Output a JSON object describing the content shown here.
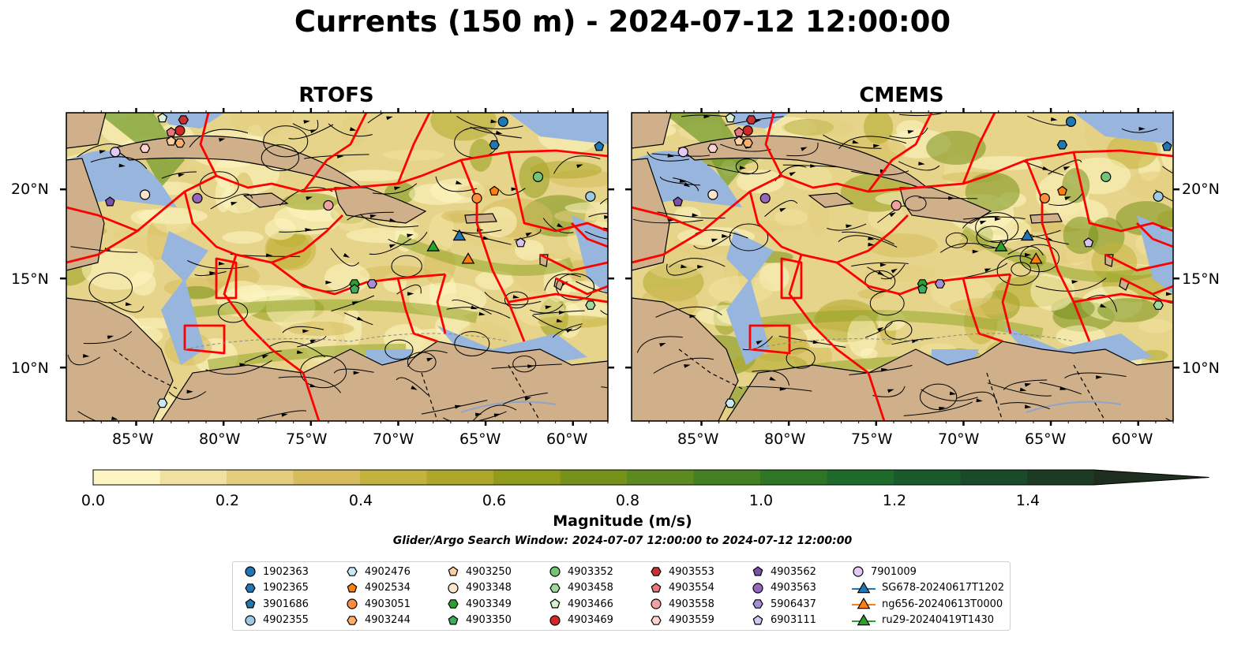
{
  "title": "Currents (150 m) - 2024-07-12 12:00:00",
  "panels": [
    {
      "title": "RTOFS"
    },
    {
      "title": "CMEMS"
    }
  ],
  "lon_ticks": [
    "85°W",
    "80°W",
    "75°W",
    "70°W",
    "65°W",
    "60°W"
  ],
  "lat_ticks": [
    "20°N",
    "15°N",
    "10°N"
  ],
  "colorbar": {
    "label": "Magnitude (m/s)",
    "ticks": [
      "0.0",
      "0.2",
      "0.4",
      "0.6",
      "0.8",
      "1.0",
      "1.2",
      "1.4"
    ],
    "colors": [
      "#fdf6c3",
      "#f1e1a0",
      "#e4cd7e",
      "#d6bc5c",
      "#c4b23e",
      "#aea72a",
      "#919c1a",
      "#76921a",
      "#5c8a1e",
      "#438022",
      "#2e7526",
      "#1e6a2b",
      "#19592b",
      "#1a4a29",
      "#1d3b24",
      "#1f2e1e"
    ]
  },
  "search_window": "Glider/Argo Search Window: 2024-07-07 12:00:00 to 2024-07-12 12:00:00",
  "legend": [
    {
      "label": "1902363",
      "shape": "circle",
      "color": "#1f77b4"
    },
    {
      "label": "1902365",
      "shape": "hexagon",
      "color": "#1f77b4"
    },
    {
      "label": "3901686",
      "shape": "pentagon",
      "color": "#1f77b4"
    },
    {
      "label": "4902355",
      "shape": "circle",
      "color": "#9ecae1"
    },
    {
      "label": "4902476",
      "shape": "hexagon",
      "color": "#c6e9f5"
    },
    {
      "label": "4902534",
      "shape": "pentagon",
      "color": "#ff7f0e"
    },
    {
      "label": "4903051",
      "shape": "circle",
      "color": "#fd8d3c"
    },
    {
      "label": "4903244",
      "shape": "hexagon",
      "color": "#fdae6b"
    },
    {
      "label": "4903250",
      "shape": "pentagon",
      "color": "#fdd0a2"
    },
    {
      "label": "4903348",
      "shape": "circle",
      "color": "#fee6ce"
    },
    {
      "label": "4903349",
      "shape": "hexagon",
      "color": "#2ca02c"
    },
    {
      "label": "4903350",
      "shape": "pentagon",
      "color": "#41ab5d"
    },
    {
      "label": "4903352",
      "shape": "circle",
      "color": "#74c476"
    },
    {
      "label": "4903458",
      "shape": "hexagon",
      "color": "#a1d99b"
    },
    {
      "label": "4903466",
      "shape": "pentagon",
      "color": "#d9f0d3"
    },
    {
      "label": "4903469",
      "shape": "circle",
      "color": "#d62728"
    },
    {
      "label": "4903553",
      "shape": "hexagon",
      "color": "#c83232"
    },
    {
      "label": "4903554",
      "shape": "pentagon",
      "color": "#e7777a"
    },
    {
      "label": "4903558",
      "shape": "circle",
      "color": "#f0a1a1"
    },
    {
      "label": "4903559",
      "shape": "hexagon",
      "color": "#fcd2d2"
    },
    {
      "label": "4903562",
      "shape": "pentagon",
      "color": "#7b52ab"
    },
    {
      "label": "4903563",
      "shape": "circle",
      "color": "#9467bd"
    },
    {
      "label": "5906437",
      "shape": "hexagon",
      "color": "#a88fd4"
    },
    {
      "label": "6903111",
      "shape": "pentagon",
      "color": "#d4c4f0"
    },
    {
      "label": "7901009",
      "shape": "circle",
      "color": "#e4c8f5"
    },
    {
      "label": "SG678-20240617T1202",
      "shape": "triangle-line",
      "color": "#1f77b4"
    },
    {
      "label": "ng656-20240613T0000",
      "shape": "triangle-line",
      "color": "#ff7f0e"
    },
    {
      "label": "ru29-20240419T1430",
      "shape": "triangle-line",
      "color": "#2ca02c"
    }
  ],
  "map_colors": {
    "land": "#cfb08a",
    "shallow": "#97b5dd",
    "boundary": "#ff0000",
    "ocean": "#e6d48a"
  }
}
